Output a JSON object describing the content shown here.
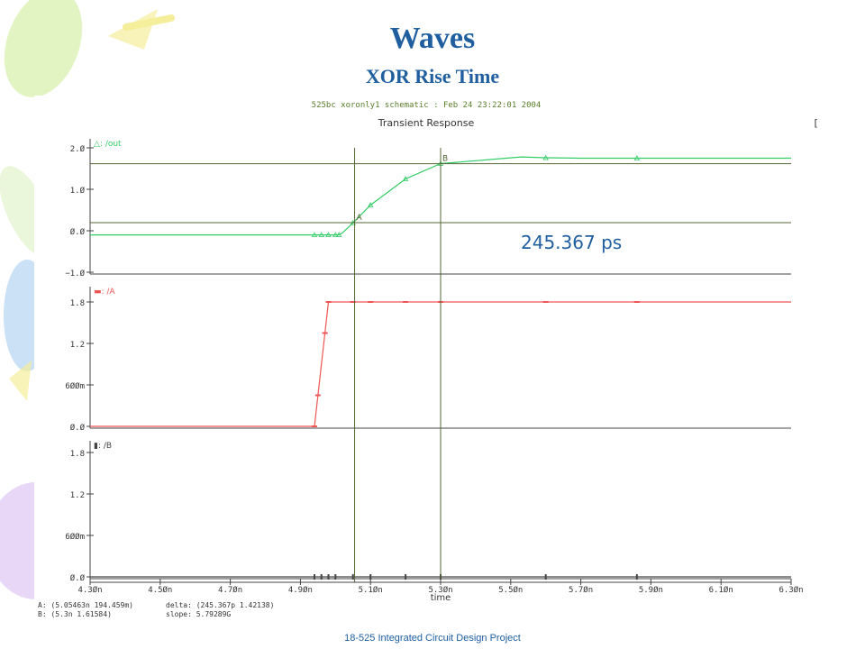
{
  "slide": {
    "title": "Waves",
    "subtitle": "XOR Rise Time",
    "footer": "18-525 Integrated Circuit Design Project"
  },
  "waveform_window": {
    "header": "525bc xoronly1 schematic : Feb 24 23:22:01 2004",
    "plot_title": "Transient Response",
    "bracket": "[",
    "cursor_readout_a": "A: (5.05463n 194.459m)",
    "delta_readout": "delta: (245.367p 1.42138)",
    "cursor_readout_b": "B: (5.3n 1.61584)",
    "slope_readout": "slope: 5.79289G",
    "delta_annotation": "245.367 ps",
    "colors": {
      "out": "#33cc66",
      "A": "#ee5555",
      "B": "#444444",
      "grid": "#444444",
      "cursor": "#556633",
      "annotation": "#1f5fa0",
      "title": "#1f5fa0"
    }
  },
  "chart_data": {
    "type": "line",
    "title": "Transient Response",
    "xlabel": "time",
    "xlim": [
      4.3,
      6.3
    ],
    "x_unit": "ns",
    "x_ticks": [
      {
        "v": 4.3,
        "label": "4.3Øn"
      },
      {
        "v": 4.5,
        "label": "4.5Øn"
      },
      {
        "v": 4.7,
        "label": "4.7Øn"
      },
      {
        "v": 4.9,
        "label": "4.9Øn"
      },
      {
        "v": 5.1,
        "label": "5.1Øn"
      },
      {
        "v": 5.3,
        "label": "5.3Øn"
      },
      {
        "v": 5.5,
        "label": "5.5Øn"
      },
      {
        "v": 5.7,
        "label": "5.7Øn"
      },
      {
        "v": 5.9,
        "label": "5.9Øn"
      },
      {
        "v": 6.1,
        "label": "6.1Øn"
      },
      {
        "v": 6.3,
        "label": "6.3Øn"
      }
    ],
    "cursors": [
      {
        "name": "A",
        "x": 5.05463,
        "y": 0.194459
      },
      {
        "name": "B",
        "x": 5.3,
        "y": 1.61584
      }
    ],
    "strips": [
      {
        "name": "/out",
        "legend": "△: /out",
        "ylim": [
          -1.0,
          2.0
        ],
        "y_ticks": [
          {
            "v": 2.0,
            "label": "2.Ø"
          },
          {
            "v": 1.0,
            "label": "1.Ø"
          },
          {
            "v": 0.0,
            "label": "Ø.Ø"
          },
          {
            "v": -1.0,
            "label": "−1.Ø"
          }
        ],
        "x": [
          4.3,
          4.94,
          4.96,
          4.98,
          5.0,
          5.01,
          5.02,
          5.05,
          5.1,
          5.2,
          5.3,
          5.53,
          5.6,
          5.7,
          5.86,
          6.3
        ],
        "values": [
          -0.1,
          -0.1,
          -0.1,
          -0.1,
          -0.1,
          -0.1,
          -0.05,
          0.19,
          0.62,
          1.25,
          1.62,
          1.78,
          1.76,
          1.75,
          1.75,
          1.75
        ],
        "marker_x": [
          4.94,
          4.96,
          4.98,
          5.0,
          5.01,
          5.05,
          5.1,
          5.2,
          5.3,
          5.6,
          5.86
        ]
      },
      {
        "name": "/A",
        "legend": "▬: /A",
        "ylim": [
          0.0,
          1.8
        ],
        "y_ticks": [
          {
            "v": 1.8,
            "label": "1.8"
          },
          {
            "v": 1.2,
            "label": "1.2"
          },
          {
            "v": 0.6,
            "label": "6ØØm"
          },
          {
            "v": 0.0,
            "label": "Ø.Ø"
          }
        ],
        "x": [
          4.3,
          4.94,
          4.98,
          6.3
        ],
        "values": [
          0.0,
          0.0,
          1.8,
          1.8
        ],
        "marker_x": [
          4.94,
          4.95,
          4.97,
          4.98,
          5.05,
          5.1,
          5.2,
          5.3,
          5.6,
          5.86
        ]
      },
      {
        "name": "/B",
        "legend": "▮: /B",
        "ylim": [
          0.0,
          1.8
        ],
        "y_ticks": [
          {
            "v": 1.8,
            "label": "1.8"
          },
          {
            "v": 1.2,
            "label": "1.2"
          },
          {
            "v": 0.6,
            "label": "6ØØm"
          },
          {
            "v": 0.0,
            "label": "Ø.Ø"
          }
        ],
        "x": [
          4.3,
          6.3
        ],
        "values": [
          0.0,
          0.0
        ],
        "marker_x": [
          4.94,
          4.96,
          4.98,
          5.0,
          5.05,
          5.1,
          5.2,
          5.3,
          5.6,
          5.86
        ]
      }
    ]
  }
}
